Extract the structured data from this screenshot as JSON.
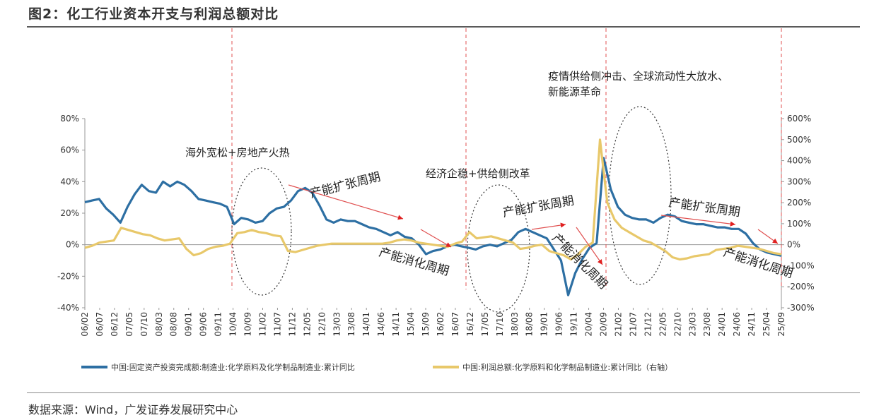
{
  "title": "图2：化工行业资本开支与利润总额对比",
  "source": "数据来源：Wind，广发证券发展研究中心",
  "chart_data": {
    "type": "line",
    "y_left": {
      "ylim": [
        -40,
        80
      ],
      "ticks": [
        "80%",
        "60%",
        "40%",
        "20%",
        "0%",
        "-20%",
        "-40%"
      ]
    },
    "y_right": {
      "ylim": [
        -300,
        600
      ],
      "ticks": [
        "600%",
        "500%",
        "400%",
        "300%",
        "200%",
        "100%",
        "0%",
        "-100%",
        "-200%",
        "-300%"
      ]
    },
    "x_ticks": [
      "06/02",
      "06/07",
      "06/12",
      "07/05",
      "07/10",
      "08/03",
      "08/08",
      "09/01",
      "09/06",
      "09/11",
      "10/04",
      "10/09",
      "11/02",
      "11/07",
      "11/12",
      "12/05",
      "12/10",
      "13/03",
      "13/08",
      "14/01",
      "14/06",
      "14/11",
      "15/04",
      "15/09",
      "16/02",
      "16/07",
      "16/12",
      "17/05",
      "17/10",
      "18/03",
      "18/08",
      "19/01",
      "19/06",
      "19/11",
      "20/04",
      "20/09",
      "21/02",
      "21/07",
      "21/12",
      "22/05",
      "22/10",
      "23/03",
      "23/08",
      "24/01",
      "24/06",
      "24/11",
      "25/04",
      "25/09"
    ],
    "series": [
      {
        "name": "中国:固定资产投资完成额:制造业:化学原料及化学制品制造业:累计同比",
        "axis": "left",
        "color": "#2d6fa3",
        "values": [
          27,
          28,
          29,
          23,
          19,
          14,
          24,
          32,
          38,
          34,
          33,
          40,
          37,
          40,
          38,
          34,
          29,
          28,
          27,
          26,
          24,
          13,
          17,
          16,
          14,
          15,
          20,
          23,
          24,
          28,
          34,
          36,
          33,
          25,
          16,
          14,
          16,
          15,
          15,
          13,
          11,
          10,
          8,
          6,
          8,
          5,
          4,
          0,
          -6,
          -4,
          -3,
          -1,
          0,
          -1,
          -2,
          -3,
          -1,
          0,
          -1,
          1,
          3,
          8,
          10,
          8,
          6,
          4,
          -3,
          -10,
          -32,
          -18,
          -9,
          -2,
          1,
          55,
          35,
          24,
          19,
          17,
          16,
          16,
          14,
          17,
          19,
          18,
          15,
          14,
          13,
          13,
          12,
          11,
          11,
          10,
          10,
          7,
          1,
          -3,
          -5,
          -6,
          -7
        ],
        "x_start_index": 0,
        "x_end_index": 47
      },
      {
        "name": "中国:利润总额:化学原料和化学制品制造业:累计同比（右轴）",
        "axis": "right",
        "color": "#e8c86a",
        "values": [
          -15,
          -5,
          10,
          15,
          20,
          80,
          70,
          60,
          50,
          45,
          30,
          20,
          25,
          30,
          -20,
          -50,
          -40,
          -20,
          -10,
          -5,
          5,
          55,
          60,
          70,
          60,
          55,
          45,
          40,
          -30,
          -35,
          -25,
          -15,
          -5,
          0,
          5,
          5,
          5,
          5,
          5,
          5,
          5,
          5,
          10,
          20,
          25,
          20,
          10,
          5,
          0,
          -5,
          -10,
          5,
          15,
          60,
          30,
          35,
          40,
          30,
          20,
          10,
          -20,
          -15,
          -5,
          0,
          -30,
          -40,
          -50,
          -70,
          -45,
          -10,
          10,
          500,
          200,
          120,
          80,
          60,
          40,
          20,
          10,
          -10,
          -30,
          -60,
          -70,
          -65,
          -55,
          -50,
          -45,
          -25,
          -20,
          -15,
          -5,
          -10,
          -15,
          -20,
          -30,
          -40,
          -45
        ],
        "x_start_index": 0,
        "x_end_index": 47
      }
    ],
    "annotations": [
      "海外宽松+房地产火热",
      "产能扩张周期",
      "产能消化周期",
      "经济企稳+供给侧改革",
      "产能扩张周期",
      "产能消化周期",
      "疫情供给侧冲击、全球流动性大放水、",
      "新能源革命",
      "产能扩张周期",
      "产能消化周期"
    ],
    "legend": [
      "中国:固定资产投资完成额:制造业:化学原料及化学制品制造业:累计同比",
      "中国:利润总额:化学原料和化学制品制造业:累计同比（右轴）"
    ],
    "legend_placement": "bottom",
    "grid": false
  }
}
